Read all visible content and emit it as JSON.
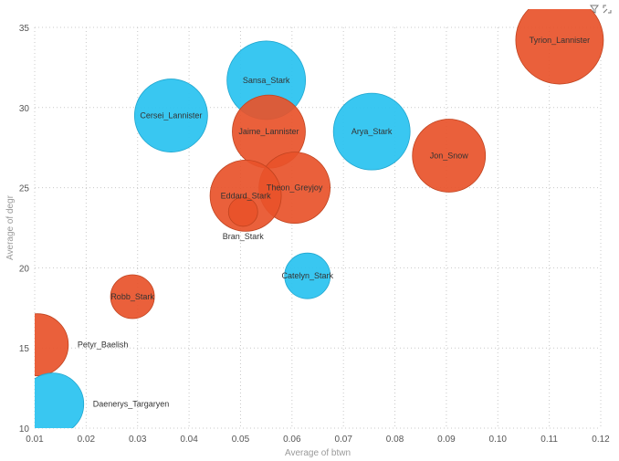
{
  "icons": {
    "filter": "filter-icon",
    "focus": "focus-mode-icon"
  },
  "colors": {
    "red_series": "#E8532A",
    "blue_series": "#2EC4F0"
  },
  "chart_data": {
    "type": "scatter",
    "variant": "bubble",
    "xlabel": "Average of btwn",
    "ylabel": "Average of degr",
    "xlim": [
      0.01,
      0.12
    ],
    "ylim": [
      10,
      35
    ],
    "x_ticks": [
      "0.01",
      "0.02",
      "0.03",
      "0.04",
      "0.05",
      "0.06",
      "0.07",
      "0.08",
      "0.09",
      "0.10",
      "0.11",
      "0.12"
    ],
    "y_ticks": [
      "10",
      "15",
      "20",
      "25",
      "30",
      "35"
    ],
    "grid": true,
    "legend": "none",
    "points": [
      {
        "label": "Tyrion_Lannister",
        "x": 0.112,
        "y": 34.2,
        "size": 48,
        "color": "red"
      },
      {
        "label": "Jon_Snow",
        "x": 0.0905,
        "y": 27.0,
        "size": 40,
        "color": "red"
      },
      {
        "label": "Arya_Stark",
        "x": 0.0755,
        "y": 28.5,
        "size": 42,
        "color": "blue"
      },
      {
        "label": "Jaime_Lannister",
        "x": 0.0555,
        "y": 28.5,
        "size": 40,
        "color": "red"
      },
      {
        "label": "Sansa_Stark",
        "x": 0.055,
        "y": 31.7,
        "size": 43,
        "color": "blue"
      },
      {
        "label": "Cersei_Lannister",
        "x": 0.0365,
        "y": 29.5,
        "size": 40,
        "color": "blue"
      },
      {
        "label": "Theon_Greyjoy",
        "x": 0.0605,
        "y": 25.0,
        "size": 39,
        "color": "red"
      },
      {
        "label": "Eddard_Stark",
        "x": 0.051,
        "y": 24.5,
        "size": 39,
        "color": "red"
      },
      {
        "label": "Bran_Stark",
        "x": 0.0505,
        "y": 23.5,
        "size": 16,
        "color": "red"
      },
      {
        "label": "Catelyn_Stark",
        "x": 0.063,
        "y": 19.5,
        "size": 25,
        "color": "blue"
      },
      {
        "label": "Robb_Stark",
        "x": 0.029,
        "y": 18.2,
        "size": 24,
        "color": "red"
      },
      {
        "label": "Petyr_Baelish",
        "x": 0.0105,
        "y": 15.2,
        "size": 34,
        "color": "red"
      },
      {
        "label": "Daenerys_Targaryen",
        "x": 0.0135,
        "y": 11.5,
        "size": 34,
        "color": "blue"
      }
    ]
  }
}
